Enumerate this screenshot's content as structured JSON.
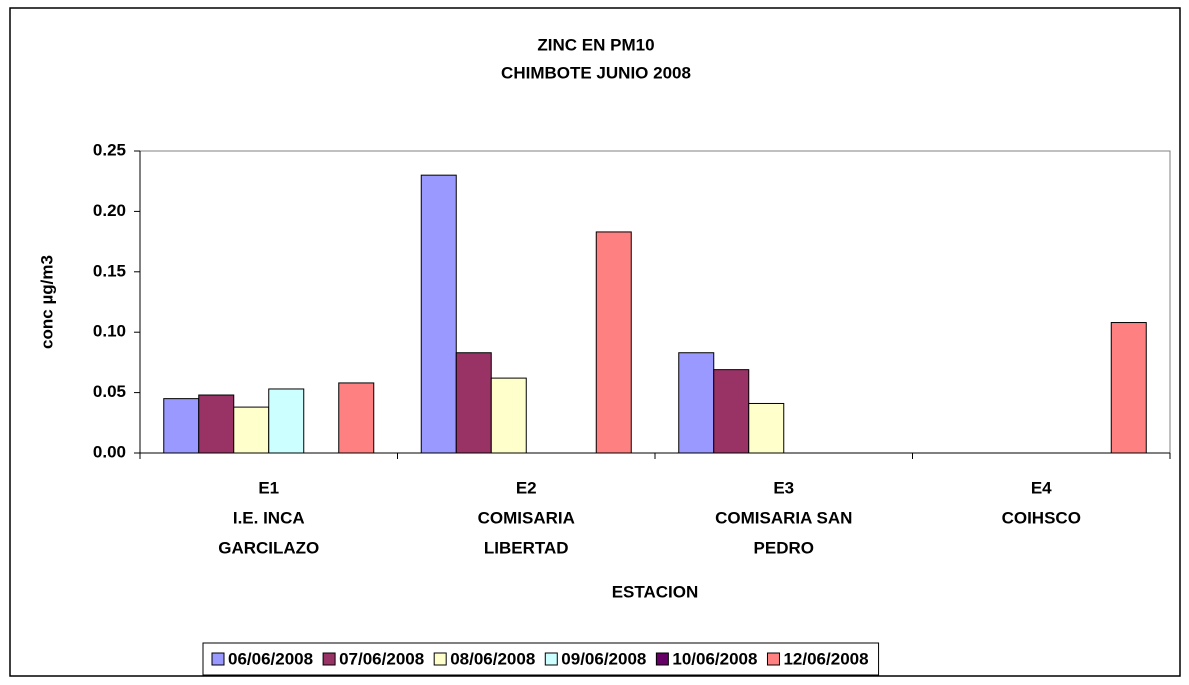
{
  "chart_data": {
    "type": "bar",
    "title": [
      "ZINC EN PM10",
      "CHIMBOTE JUNIO 2008"
    ],
    "x_label": "ESTACION",
    "y_label": "conc µg/m3",
    "categories": [
      [
        "E1",
        "I.E. INCA",
        "GARCILAZO"
      ],
      [
        "E2",
        "COMISARIA",
        "LIBERTAD"
      ],
      [
        "E3",
        "COMISARIA SAN",
        "PEDRO"
      ],
      [
        "E4",
        "COIHSCO"
      ]
    ],
    "series": [
      {
        "name": "06/06/2008",
        "color": "#9999ff",
        "values": [
          0.045,
          0.23,
          0.083,
          null
        ]
      },
      {
        "name": "07/06/2008",
        "color": "#993366",
        "values": [
          0.048,
          0.083,
          0.069,
          null
        ]
      },
      {
        "name": "08/06/2008",
        "color": "#ffffcc",
        "values": [
          0.038,
          0.062,
          0.041,
          null
        ]
      },
      {
        "name": "09/06/2008",
        "color": "#ccffff",
        "values": [
          0.053,
          null,
          null,
          null
        ]
      },
      {
        "name": "10/06/2008",
        "color": "#660066",
        "values": [
          null,
          null,
          null,
          null
        ]
      },
      {
        "name": "12/06/2008",
        "color": "#ff8080",
        "values": [
          0.058,
          0.183,
          null,
          0.108
        ]
      }
    ],
    "ylim": [
      0,
      0.25
    ],
    "yticks": [
      {
        "value": 0,
        "label": "0.00"
      },
      {
        "value": 0.05,
        "label": "0.05"
      },
      {
        "value": 0.1,
        "label": "0.10"
      },
      {
        "value": 0.15,
        "label": "0.15"
      },
      {
        "value": 0.2,
        "label": "0.20"
      },
      {
        "value": 0.25,
        "label": "0.25"
      }
    ],
    "grid": false,
    "legend": "bottom"
  }
}
